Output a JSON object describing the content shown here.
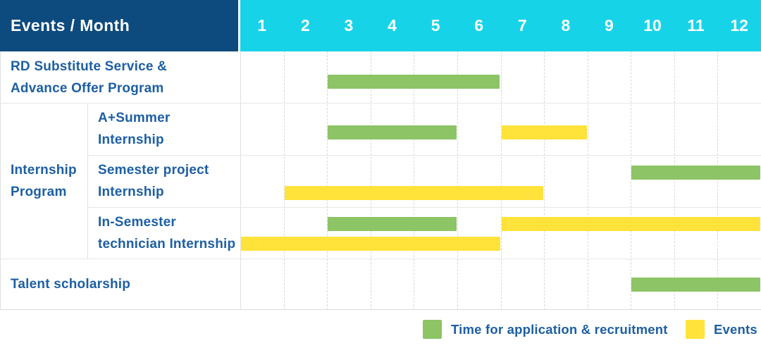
{
  "colors": {
    "header_bg": "#0d4a7d",
    "months_bg": "#17d3e8",
    "green": "#8cc466",
    "yellow": "#ffe23a",
    "label_text": "#1d5fa3",
    "header_text": "#ffffff"
  },
  "chart_data": {
    "type": "bar",
    "variant": "gantt-timeline",
    "corner_label": "Events / Month",
    "xlabel": "Month",
    "x_range": [
      1,
      12
    ],
    "months": [
      "1",
      "2",
      "3",
      "4",
      "5",
      "6",
      "7",
      "8",
      "9",
      "10",
      "11",
      "12"
    ],
    "grid": "dashed-vertical",
    "legend_position": "bottom-right",
    "rows": [
      {
        "group": "",
        "label": "RD Substitute Service &\nAdvance Offer Program",
        "bars": [
          {
            "color": "green",
            "start_month": 3,
            "end_month": 6,
            "line": 0
          }
        ]
      },
      {
        "group": "Internship Program",
        "label": "A+Summer\nInternship",
        "bars": [
          {
            "color": "green",
            "start_month": 3,
            "end_month": 5,
            "line": 0
          },
          {
            "color": "yellow",
            "start_month": 7,
            "end_month": 8,
            "line": 0
          }
        ]
      },
      {
        "group": "Internship Program",
        "label": "Semester project\nInternship",
        "bars": [
          {
            "color": "green",
            "start_month": 10,
            "end_month": 12,
            "line": 0
          },
          {
            "color": "yellow",
            "start_month": 2,
            "end_month": 7,
            "line": 1
          }
        ]
      },
      {
        "group": "Internship Program",
        "label": "In-Semester\ntechnician Internship",
        "bars": [
          {
            "color": "green",
            "start_month": 3,
            "end_month": 5,
            "line": 0
          },
          {
            "color": "yellow",
            "start_month": 7,
            "end_month": 12,
            "line": 0
          },
          {
            "color": "yellow",
            "start_month": 1,
            "end_month": 6,
            "line": 1
          }
        ]
      },
      {
        "group": "",
        "label": "Talent scholarship",
        "bars": [
          {
            "color": "green",
            "start_month": 10,
            "end_month": 12,
            "line": 0
          }
        ]
      }
    ],
    "legend": [
      {
        "color": "green",
        "label": "Time for application & recruitment"
      },
      {
        "color": "yellow",
        "label": "Events"
      }
    ]
  }
}
